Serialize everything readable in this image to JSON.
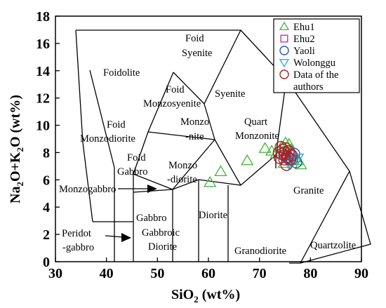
{
  "chart_data": {
    "type": "scatter",
    "xlabel_main": "SiO",
    "xlabel_sub": "2",
    "xlabel_tail": " (wt%)",
    "ylabel_a": "Na",
    "ylabel_a_sub": "2",
    "ylabel_b": "O+K",
    "ylabel_b_sub": "2",
    "ylabel_c": "O (wt%)",
    "xlim": [
      30,
      90
    ],
    "ylim": [
      0,
      18
    ],
    "xticks": [
      "30",
      "40",
      "50",
      "60",
      "70",
      "80",
      "90"
    ],
    "yticks": [
      "0",
      "2",
      "4",
      "6",
      "8",
      "10",
      "12",
      "14",
      "16",
      "18"
    ],
    "field_labels": {
      "foid_syenite_1": "Foid",
      "foid_syenite_2": "Syenite",
      "foidolite": "Foidolite",
      "foid_monzosyenite_1": "Foid",
      "foid_monzosyenite_2": "Monzosyenite",
      "syenite": "Syenite",
      "foid_monzodiorite_1": "Foid",
      "foid_monzodiorite_2": "Monzodiorite",
      "monzonite_1": "Monzo",
      "monzonite_2": "-nite",
      "quartz_monzonite_1": "Quart",
      "quartz_monzonite_2": "Monzonite",
      "foid_gabbro_1": "Foid",
      "foid_gabbro_2": "Gabbro",
      "monzodiorite_1": "Monzo",
      "monzodiorite_2": "-diorite",
      "monzogabbro": "Monzogabbro",
      "granite": "Granite",
      "gabbro": "Gabbro",
      "diorite": "Diorite",
      "peridot_gabbro_1": "Peridot",
      "peridot_gabbro_2": "-gabbro",
      "gabbroic_diorite_1": "Gabbroic",
      "gabbroic_diorite_2": "Diorite",
      "granodiorite": "Granodiorite",
      "quartzolite": "Quartzolite"
    },
    "legend": [
      {
        "label": "Ehu1",
        "marker": "triangle",
        "color": "#4CB848"
      },
      {
        "label": "Ehu2",
        "marker": "square",
        "color": "#CC3399"
      },
      {
        "label": "Yaoli",
        "marker": "circle",
        "color": "#2255BB"
      },
      {
        "label": "Wolonggu",
        "marker": "triangle-down",
        "color": "#33AADD"
      },
      {
        "label": "Data of the",
        "label2": "authors",
        "marker": "circle",
        "color": "#AA2222"
      }
    ],
    "series": [
      {
        "name": "Ehu1",
        "marker": "triangle",
        "color": "#4CB848",
        "points": [
          [
            60.3,
            5.8
          ],
          [
            62.4,
            6.6
          ],
          [
            67.6,
            7.4
          ],
          [
            71.1,
            8.3
          ],
          [
            72.4,
            8.1
          ],
          [
            73.3,
            7.9
          ],
          [
            74.3,
            8.4
          ],
          [
            75.1,
            8.7
          ],
          [
            75.8,
            8.6
          ],
          [
            76.2,
            8.2
          ],
          [
            76.6,
            7.9
          ],
          [
            77.1,
            7.6
          ],
          [
            77.6,
            7.4
          ],
          [
            78.1,
            7.1
          ],
          [
            74.8,
            7.2
          ]
        ]
      },
      {
        "name": "Ehu2",
        "marker": "square",
        "color": "#CC3399",
        "points": [
          [
            75.2,
            7.6
          ],
          [
            76.1,
            7.8
          ]
        ]
      },
      {
        "name": "Yaoli",
        "marker": "circle",
        "color": "#2255BB",
        "points": [
          [
            75.6,
            7.6
          ],
          [
            76.4,
            7.5
          ],
          [
            77.2,
            7.3
          ],
          [
            76.8,
            7.9
          ],
          [
            74.9,
            7.8
          ]
        ]
      },
      {
        "name": "Wolonggu",
        "marker": "triangle-down",
        "color": "#33AADD",
        "points": [
          [
            76.5,
            7.4
          ],
          [
            77.5,
            7.6
          ],
          [
            75.8,
            7.2
          ]
        ]
      },
      {
        "name": "Data of the authors",
        "marker": "circle",
        "color": "#AA2222",
        "points": [
          [
            74.2,
            8.4
          ],
          [
            75.1,
            8.3
          ],
          [
            75.7,
            8.1
          ],
          [
            74.4,
            7.9
          ],
          [
            74.9,
            7.5
          ],
          [
            75.5,
            7.7
          ],
          [
            76.0,
            7.5
          ],
          [
            74.0,
            7.6
          ],
          [
            73.8,
            8.0
          ],
          [
            75.3,
            7.1
          ],
          [
            76.3,
            7.8
          ],
          [
            75.0,
            8.0
          ],
          [
            74.6,
            8.2
          ]
        ]
      }
    ]
  }
}
